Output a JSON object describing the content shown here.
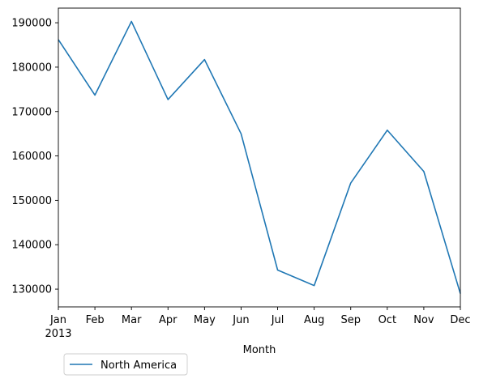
{
  "chart_data": {
    "type": "line",
    "title": "",
    "xlabel": "Month",
    "ylabel": "",
    "x_tick_labels": [
      "Jan",
      "Feb",
      "Mar",
      "Apr",
      "May",
      "Jun",
      "Jul",
      "Aug",
      "Sep",
      "Oct",
      "Nov",
      "Dec"
    ],
    "year_label": "2013",
    "x": [
      "2013-01",
      "2013-02",
      "2013-03",
      "2013-04",
      "2013-05",
      "2013-06",
      "2013-07",
      "2013-08",
      "2013-09",
      "2013-10",
      "2013-11",
      "2013-12"
    ],
    "y_ticks": [
      130000,
      140000,
      150000,
      160000,
      170000,
      180000,
      190000
    ],
    "ylim": [
      126000,
      193300
    ],
    "series": [
      {
        "name": "North America",
        "color": "#1f77b4",
        "values": [
          186200,
          173700,
          190300,
          172700,
          181700,
          165000,
          134300,
          130800,
          153900,
          165800,
          156500,
          129000
        ]
      }
    ],
    "grid": false,
    "legend_position": "lower-left"
  }
}
